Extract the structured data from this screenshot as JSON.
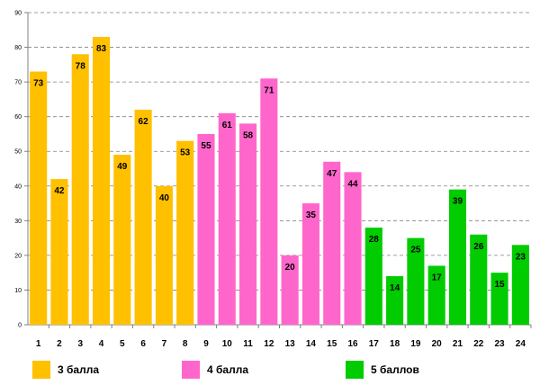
{
  "chart_data": {
    "type": "bar",
    "categories": [
      "1",
      "2",
      "3",
      "4",
      "5",
      "6",
      "7",
      "8",
      "9",
      "10",
      "11",
      "12",
      "13",
      "14",
      "15",
      "16",
      "17",
      "18",
      "19",
      "20",
      "21",
      "22",
      "23",
      "24"
    ],
    "values": [
      73,
      42,
      78,
      83,
      49,
      62,
      40,
      53,
      55,
      61,
      58,
      71,
      20,
      35,
      47,
      44,
      28,
      14,
      25,
      17,
      39,
      26,
      15,
      23
    ],
    "groups": [
      0,
      0,
      0,
      0,
      0,
      0,
      0,
      0,
      1,
      1,
      1,
      1,
      1,
      1,
      1,
      1,
      2,
      2,
      2,
      2,
      2,
      2,
      2,
      2
    ],
    "ylim": [
      0,
      90
    ],
    "yticks": [
      0,
      10,
      20,
      30,
      40,
      50,
      60,
      70,
      80,
      90
    ],
    "grid": true,
    "legend": [
      {
        "name": "3 балла",
        "color": "#FFC000"
      },
      {
        "name": "4 балла",
        "color": "#FF66CC"
      },
      {
        "name": "5 баллов",
        "color": "#00CC00"
      }
    ],
    "legend_position": "bottom"
  }
}
